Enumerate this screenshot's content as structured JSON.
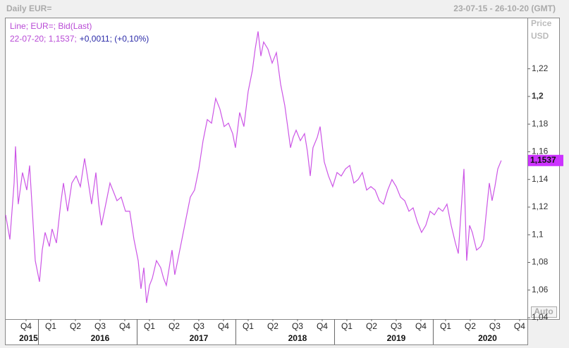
{
  "chart_data": {
    "type": "line",
    "title": "Daily EUR=",
    "date_range": "23-07-15 - 26-10-20 (GMT)",
    "y_label": [
      "Price",
      "USD"
    ],
    "legend_title": "Line; EUR=; Bid(Last)",
    "legend_line": [
      "22-07-20; 1,1537;",
      "+0,0011; (+0,10%)"
    ],
    "last_value": 1.1537,
    "last_label": "1,1537",
    "scale_button": "Auto",
    "series": [
      {
        "name": "EUR=",
        "color": "#cc55e6",
        "x": [
          2015.668,
          2015.711,
          2015.754,
          2015.768,
          2015.796,
          2015.839,
          2015.882,
          2015.911,
          2015.939,
          2015.968,
          2016.011,
          2016.039,
          2016.068,
          2016.111,
          2016.139,
          2016.182,
          2016.225,
          2016.254,
          2016.296,
          2016.339,
          2016.382,
          2016.425,
          2016.468,
          2016.496,
          2016.539,
          2016.582,
          2016.611,
          2016.639,
          2016.682,
          2016.725,
          2016.768,
          2016.796,
          2016.839,
          2016.882,
          2016.925,
          2016.968,
          2017.011,
          2017.039,
          2017.068,
          2017.096,
          2017.125,
          2017.154,
          2017.196,
          2017.239,
          2017.268,
          2017.296,
          2017.325,
          2017.354,
          2017.382,
          2017.411,
          2017.454,
          2017.496,
          2017.539,
          2017.582,
          2017.625,
          2017.668,
          2017.711,
          2017.754,
          2017.796,
          2017.839,
          2017.882,
          2017.925,
          2017.968,
          2017.996,
          2018.039,
          2018.082,
          2018.125,
          2018.168,
          2018.196,
          2018.225,
          2018.254,
          2018.282,
          2018.325,
          2018.368,
          2018.411,
          2018.454,
          2018.496,
          2018.525,
          2018.554,
          2018.582,
          2018.611,
          2018.654,
          2018.696,
          2018.725,
          2018.754,
          2018.782,
          2018.825,
          2018.854,
          2018.896,
          2018.939,
          2018.982,
          2019.025,
          2019.068,
          2019.111,
          2019.154,
          2019.196,
          2019.239,
          2019.282,
          2019.325,
          2019.368,
          2019.411,
          2019.454,
          2019.496,
          2019.539,
          2019.582,
          2019.625,
          2019.668,
          2019.711,
          2019.754,
          2019.796,
          2019.839,
          2019.882,
          2019.925,
          2019.968,
          2020.011,
          2020.054,
          2020.096,
          2020.139,
          2020.182,
          2020.225,
          2020.254,
          2020.282,
          2020.311,
          2020.339,
          2020.368,
          2020.396,
          2020.439,
          2020.482,
          2020.511,
          2020.539,
          2020.568,
          2020.596,
          2020.625,
          2020.654,
          2020.689
        ],
        "values": [
          1.1144,
          1.0966,
          1.1374,
          1.1639,
          1.1221,
          1.145,
          1.1323,
          1.1501,
          1.117,
          1.0813,
          1.066,
          1.0889,
          1.1017,
          1.0915,
          1.1042,
          1.094,
          1.1221,
          1.1374,
          1.117,
          1.1374,
          1.1425,
          1.1348,
          1.1552,
          1.1425,
          1.1221,
          1.145,
          1.1221,
          1.1068,
          1.1221,
          1.1374,
          1.1297,
          1.1246,
          1.1272,
          1.117,
          1.117,
          1.0966,
          1.0813,
          1.0609,
          1.0762,
          1.0507,
          1.0634,
          1.0685,
          1.0813,
          1.0762,
          1.0685,
          1.0634,
          1.0762,
          1.0889,
          1.0711,
          1.0813,
          1.0966,
          1.1119,
          1.1272,
          1.1323,
          1.1476,
          1.168,
          1.1833,
          1.1807,
          1.1986,
          1.1909,
          1.1782,
          1.1807,
          1.1731,
          1.1629,
          1.1884,
          1.1782,
          1.2037,
          1.219,
          1.2343,
          1.247,
          1.2292,
          1.2394,
          1.2343,
          1.2241,
          1.2317,
          1.2088,
          1.1935,
          1.1782,
          1.1629,
          1.1705,
          1.1756,
          1.168,
          1.1731,
          1.1603,
          1.1425,
          1.1629,
          1.1705,
          1.1782,
          1.1527,
          1.1425,
          1.1348,
          1.145,
          1.1425,
          1.1476,
          1.1501,
          1.1374,
          1.1399,
          1.145,
          1.1323,
          1.1348,
          1.1323,
          1.1246,
          1.1221,
          1.1323,
          1.1399,
          1.1348,
          1.1272,
          1.1246,
          1.117,
          1.1195,
          1.1093,
          1.1017,
          1.1068,
          1.117,
          1.1144,
          1.1195,
          1.117,
          1.1221,
          1.1068,
          1.094,
          1.0864,
          1.117,
          1.1476,
          1.0813,
          1.1068,
          1.1017,
          1.0889,
          1.0915,
          1.0966,
          1.117,
          1.1374,
          1.1246,
          1.1348,
          1.1476,
          1.1537
        ]
      }
    ],
    "xlim": [
      2015.668,
      2020.954
    ],
    "ylim": [
      1.039,
      1.257
    ],
    "yticks": [
      {
        "value": 1.04,
        "label": "1,04"
      },
      {
        "value": 1.06,
        "label": "1,06"
      },
      {
        "value": 1.08,
        "label": "1,08"
      },
      {
        "value": 1.1,
        "label": "1,1"
      },
      {
        "value": 1.12,
        "label": "1,12"
      },
      {
        "value": 1.14,
        "label": "1,14"
      },
      {
        "value": 1.16,
        "label": "1,16"
      },
      {
        "value": 1.18,
        "label": "1,18"
      },
      {
        "value": 1.2,
        "label": "1,2"
      },
      {
        "value": 1.22,
        "label": "1,22"
      }
    ],
    "xticks": [
      {
        "value": 2015.875,
        "label": "Q4"
      },
      {
        "value": 2016.125,
        "label": "Q1"
      },
      {
        "value": 2016.375,
        "label": "Q2"
      },
      {
        "value": 2016.625,
        "label": "Q3"
      },
      {
        "value": 2016.875,
        "label": "Q4"
      },
      {
        "value": 2017.125,
        "label": "Q1"
      },
      {
        "value": 2017.375,
        "label": "Q2"
      },
      {
        "value": 2017.625,
        "label": "Q3"
      },
      {
        "value": 2017.875,
        "label": "Q4"
      },
      {
        "value": 2018.125,
        "label": "Q1"
      },
      {
        "value": 2018.375,
        "label": "Q2"
      },
      {
        "value": 2018.625,
        "label": "Q3"
      },
      {
        "value": 2018.875,
        "label": "Q4"
      },
      {
        "value": 2019.125,
        "label": "Q1"
      },
      {
        "value": 2019.375,
        "label": "Q2"
      },
      {
        "value": 2019.625,
        "label": "Q3"
      },
      {
        "value": 2019.875,
        "label": "Q4"
      },
      {
        "value": 2020.125,
        "label": "Q1"
      },
      {
        "value": 2020.375,
        "label": "Q2"
      },
      {
        "value": 2020.625,
        "label": "Q3"
      },
      {
        "value": 2020.875,
        "label": "Q4"
      }
    ],
    "year_ticks": [
      {
        "value": 2015.9,
        "label": "2015"
      },
      {
        "value": 2016.625,
        "label": "2016"
      },
      {
        "value": 2017.625,
        "label": "2017"
      },
      {
        "value": 2018.625,
        "label": "2018"
      },
      {
        "value": 2019.625,
        "label": "2019"
      },
      {
        "value": 2020.55,
        "label": "2020"
      }
    ],
    "grid": false
  }
}
